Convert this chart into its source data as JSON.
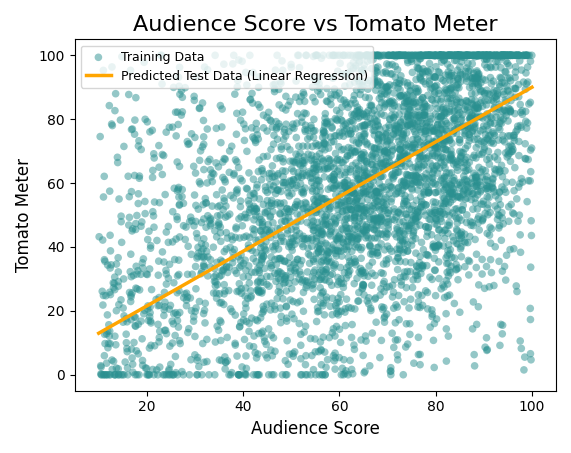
{
  "title": "Audience Score vs Tomato Meter",
  "xlabel": "Audience Score",
  "ylabel": "Tomato Meter",
  "xlim": [
    5,
    105
  ],
  "ylim": [
    -5,
    105
  ],
  "scatter_color": "#2a9090",
  "scatter_alpha": 0.5,
  "scatter_size": 30,
  "line_color": "#FFA500",
  "line_label": "Predicted Test Data (Linear Regression)",
  "scatter_label": "Training Data",
  "line_x": [
    10,
    100
  ],
  "line_y": [
    13,
    90
  ],
  "n_points": 3500,
  "seed": 42,
  "background_color": "white",
  "title_fontsize": 16,
  "label_fontsize": 12,
  "tick_fontsize": 10,
  "line_slope": 0.856,
  "line_intercept": 4.44
}
